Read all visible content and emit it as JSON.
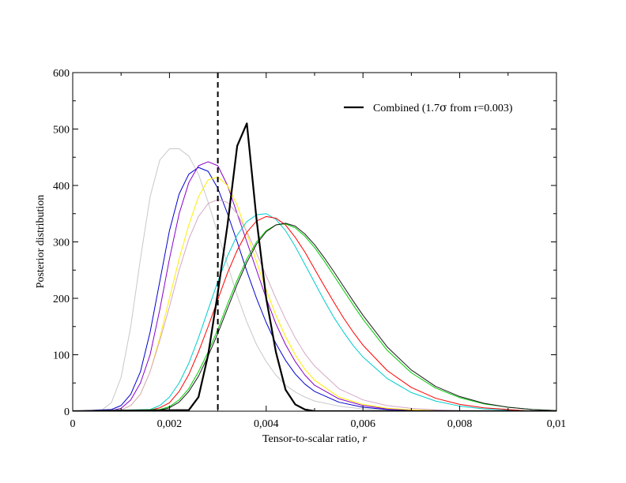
{
  "chart_data": {
    "type": "line",
    "xlabel": "Tensor-to-scalar ratio, r",
    "ylabel": "Posterior distribution",
    "xlim": [
      0,
      0.01
    ],
    "ylim": [
      0,
      600
    ],
    "x_tick_values": [
      0,
      0.002,
      0.004,
      0.006,
      0.008,
      0.01
    ],
    "x_tick_labels": [
      "0",
      "0,002",
      "0,004",
      "0,006",
      "0,008",
      "0,01"
    ],
    "y_tick_values": [
      0,
      100,
      200,
      300,
      400,
      500,
      600
    ],
    "y_tick_labels": [
      "0",
      "100",
      "200",
      "300",
      "400",
      "500",
      "600"
    ],
    "grid": false,
    "legend": {
      "position": "top-right",
      "entries": [
        {
          "label_prefix": "Combined (1.7",
          "symbol": "σ",
          "label_suffix": " from r=0.003)",
          "color": "#000000"
        }
      ]
    },
    "reference_line": {
      "x": 0.003,
      "style": "dashed",
      "color": "#000000"
    },
    "series": [
      {
        "color": "#c8c8c8",
        "width": 1,
        "x": [
          0,
          0.0006,
          0.0008,
          0.001,
          0.0012,
          0.0014,
          0.0016,
          0.0018,
          0.002,
          0.0022,
          0.0024,
          0.0026,
          0.0028,
          0.003,
          0.0032,
          0.0034,
          0.0036,
          0.0038,
          0.004,
          0.0042,
          0.0044,
          0.0046,
          0.0048,
          0.005,
          0.0055,
          0.006,
          0.0065,
          0.007,
          0.0075,
          0.008
        ],
        "y": [
          0,
          2,
          15,
          60,
          150,
          270,
          380,
          445,
          465,
          465,
          452,
          420,
          370,
          315,
          260,
          205,
          158,
          118,
          88,
          64,
          46,
          34,
          25,
          18,
          9,
          4,
          2,
          1,
          0.5,
          0
        ]
      },
      {
        "color": "#0000cc",
        "width": 1,
        "x": [
          0,
          0.0008,
          0.001,
          0.0012,
          0.0014,
          0.0016,
          0.0018,
          0.002,
          0.0022,
          0.0024,
          0.0026,
          0.0028,
          0.003,
          0.0032,
          0.0034,
          0.0036,
          0.0038,
          0.004,
          0.0042,
          0.0044,
          0.0046,
          0.0048,
          0.005,
          0.0055,
          0.006,
          0.0065,
          0.007,
          0.008,
          0.009
        ],
        "y": [
          0,
          3,
          10,
          30,
          70,
          140,
          230,
          320,
          385,
          420,
          432,
          425,
          395,
          350,
          300,
          248,
          200,
          157,
          120,
          90,
          66,
          48,
          35,
          16,
          7,
          3,
          1.5,
          0.3,
          0
        ]
      },
      {
        "color": "#8800cc",
        "width": 1,
        "x": [
          0,
          0.0008,
          0.001,
          0.0012,
          0.0014,
          0.0016,
          0.0018,
          0.002,
          0.0022,
          0.0024,
          0.0026,
          0.0028,
          0.003,
          0.0032,
          0.0034,
          0.0036,
          0.0038,
          0.004,
          0.0042,
          0.0044,
          0.0046,
          0.0048,
          0.005,
          0.0055,
          0.006,
          0.0065,
          0.007,
          0.008,
          0.009
        ],
        "y": [
          0,
          1,
          5,
          20,
          50,
          100,
          180,
          270,
          350,
          405,
          435,
          442,
          435,
          400,
          350,
          300,
          250,
          200,
          155,
          118,
          88,
          64,
          46,
          22,
          10,
          4,
          2,
          0.5,
          0
        ]
      },
      {
        "color": "#ffee00",
        "width": 1,
        "x": [
          0,
          0.001,
          0.0012,
          0.0014,
          0.0016,
          0.0018,
          0.002,
          0.0022,
          0.0024,
          0.0026,
          0.0028,
          0.003,
          0.0032,
          0.0034,
          0.0036,
          0.0038,
          0.004,
          0.0042,
          0.0044,
          0.0046,
          0.0048,
          0.005,
          0.0055,
          0.006,
          0.0065,
          0.007,
          0.0075,
          0.008,
          0.009
        ],
        "y": [
          0,
          2,
          10,
          30,
          70,
          130,
          200,
          270,
          330,
          380,
          410,
          415,
          400,
          365,
          315,
          265,
          215,
          170,
          132,
          100,
          74,
          55,
          25,
          12,
          5,
          2.5,
          1,
          0.5,
          0
        ]
      },
      {
        "color": "#d4a8c8",
        "width": 1,
        "x": [
          0,
          0.001,
          0.0012,
          0.0014,
          0.0016,
          0.0018,
          0.002,
          0.0022,
          0.0024,
          0.0026,
          0.0028,
          0.003,
          0.0032,
          0.0034,
          0.0036,
          0.0038,
          0.004,
          0.0042,
          0.0044,
          0.0046,
          0.0048,
          0.005,
          0.0055,
          0.006,
          0.0065,
          0.007,
          0.0075,
          0.008,
          0.0085,
          0.009
        ],
        "y": [
          0,
          2,
          10,
          30,
          70,
          125,
          185,
          250,
          305,
          345,
          368,
          375,
          370,
          350,
          318,
          280,
          240,
          200,
          163,
          130,
          102,
          80,
          40,
          20,
          10,
          5,
          2.5,
          1,
          0.5,
          0
        ]
      },
      {
        "color": "#00cccc",
        "width": 1,
        "x": [
          0,
          0.0016,
          0.0018,
          0.002,
          0.0022,
          0.0024,
          0.0026,
          0.0028,
          0.003,
          0.0032,
          0.0034,
          0.0036,
          0.0038,
          0.004,
          0.0042,
          0.0044,
          0.0046,
          0.0048,
          0.005,
          0.0052,
          0.0054,
          0.0056,
          0.0058,
          0.006,
          0.0065,
          0.007,
          0.0075,
          0.008,
          0.0085,
          0.009,
          0.0095
        ],
        "y": [
          0,
          3,
          10,
          25,
          50,
          85,
          130,
          180,
          230,
          275,
          312,
          336,
          348,
          350,
          340,
          320,
          292,
          260,
          228,
          196,
          166,
          140,
          116,
          96,
          58,
          33,
          18,
          9,
          4,
          2,
          0
        ]
      },
      {
        "color": "#ff0000",
        "width": 1,
        "x": [
          0,
          0.0016,
          0.0018,
          0.002,
          0.0022,
          0.0024,
          0.0026,
          0.0028,
          0.003,
          0.0032,
          0.0034,
          0.0036,
          0.0038,
          0.004,
          0.0042,
          0.0044,
          0.0046,
          0.0048,
          0.005,
          0.0052,
          0.0054,
          0.0056,
          0.0058,
          0.006,
          0.0065,
          0.007,
          0.0075,
          0.008,
          0.0085,
          0.009,
          0.0095
        ],
        "y": [
          0,
          2,
          6,
          15,
          35,
          65,
          105,
          150,
          198,
          245,
          285,
          317,
          337,
          345,
          342,
          330,
          308,
          282,
          252,
          222,
          193,
          165,
          140,
          117,
          72,
          42,
          23,
          12,
          6,
          3,
          0
        ]
      },
      {
        "color": "#00cc00",
        "width": 1,
        "x": [
          0,
          0.0018,
          0.002,
          0.0022,
          0.0024,
          0.0026,
          0.0028,
          0.003,
          0.0032,
          0.0034,
          0.0036,
          0.0038,
          0.004,
          0.0042,
          0.0044,
          0.0046,
          0.0048,
          0.005,
          0.0052,
          0.0054,
          0.0056,
          0.0058,
          0.006,
          0.0065,
          0.007,
          0.0075,
          0.008,
          0.0085,
          0.009,
          0.0095,
          0.01
        ],
        "y": [
          0,
          3,
          8,
          20,
          40,
          70,
          105,
          145,
          190,
          232,
          270,
          300,
          320,
          330,
          332,
          325,
          310,
          290,
          266,
          240,
          214,
          188,
          163,
          108,
          68,
          41,
          24,
          13,
          7,
          3,
          1
        ]
      },
      {
        "color": "#1a1a1a",
        "width": 1,
        "x": [
          0,
          0.0018,
          0.002,
          0.0022,
          0.0024,
          0.0026,
          0.0028,
          0.003,
          0.0032,
          0.0034,
          0.0036,
          0.0038,
          0.004,
          0.0042,
          0.0044,
          0.0046,
          0.0048,
          0.005,
          0.0052,
          0.0054,
          0.0056,
          0.0058,
          0.006,
          0.0065,
          0.007,
          0.0075,
          0.008,
          0.0085,
          0.009,
          0.0095,
          0.01
        ],
        "y": [
          0,
          2,
          6,
          16,
          35,
          62,
          98,
          138,
          182,
          225,
          264,
          296,
          318,
          330,
          333,
          328,
          314,
          295,
          272,
          247,
          221,
          195,
          170,
          114,
          73,
          44,
          26,
          14,
          7,
          3,
          1
        ]
      },
      {
        "color": "#000000",
        "width": 2.2,
        "x": [
          0,
          0.0024,
          0.0026,
          0.0028,
          0.003,
          0.0032,
          0.0034,
          0.0036,
          0.0038,
          0.004,
          0.0042,
          0.0044,
          0.0046,
          0.0048,
          0.005,
          0.01
        ],
        "y": [
          0,
          2,
          25,
          100,
          210,
          330,
          470,
          510,
          340,
          200,
          105,
          38,
          12,
          3,
          0,
          0
        ]
      }
    ]
  }
}
